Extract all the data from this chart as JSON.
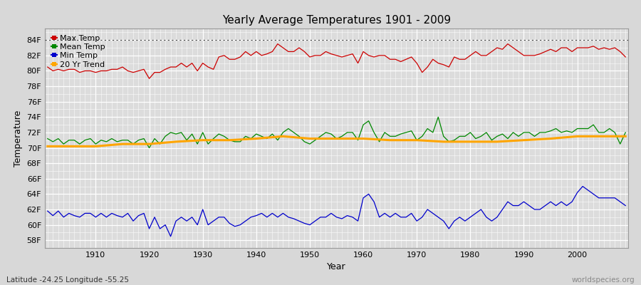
{
  "title": "Yearly Average Temperatures 1901 - 2009",
  "xlabel": "Year",
  "ylabel": "Temperature",
  "bg_color": "#d8d8d8",
  "plot_bg_color": "#dcdcdc",
  "grid_color": "#ffffff",
  "years": [
    1901,
    1902,
    1903,
    1904,
    1905,
    1906,
    1907,
    1908,
    1909,
    1910,
    1911,
    1912,
    1913,
    1914,
    1915,
    1916,
    1917,
    1918,
    1919,
    1920,
    1921,
    1922,
    1923,
    1924,
    1925,
    1926,
    1927,
    1928,
    1929,
    1930,
    1931,
    1932,
    1933,
    1934,
    1935,
    1936,
    1937,
    1938,
    1939,
    1940,
    1941,
    1942,
    1943,
    1944,
    1945,
    1946,
    1947,
    1948,
    1949,
    1950,
    1951,
    1952,
    1953,
    1954,
    1955,
    1956,
    1957,
    1958,
    1959,
    1960,
    1961,
    1962,
    1963,
    1964,
    1965,
    1966,
    1967,
    1968,
    1969,
    1970,
    1971,
    1972,
    1973,
    1974,
    1975,
    1976,
    1977,
    1978,
    1979,
    1980,
    1981,
    1982,
    1983,
    1984,
    1985,
    1986,
    1987,
    1988,
    1989,
    1990,
    1991,
    1992,
    1993,
    1994,
    1995,
    1996,
    1997,
    1998,
    1999,
    2000,
    2001,
    2002,
    2003,
    2004,
    2005,
    2006,
    2007,
    2008,
    2009
  ],
  "max_temp": [
    80.5,
    80.0,
    80.2,
    80.0,
    80.2,
    80.2,
    79.8,
    80.0,
    80.0,
    79.8,
    80.0,
    80.0,
    80.2,
    80.2,
    80.5,
    80.0,
    79.8,
    80.0,
    80.2,
    79.0,
    79.8,
    79.8,
    80.2,
    80.5,
    80.5,
    81.0,
    80.5,
    81.0,
    80.0,
    81.0,
    80.5,
    80.2,
    81.8,
    82.0,
    81.5,
    81.5,
    81.8,
    82.5,
    82.0,
    82.5,
    82.0,
    82.2,
    82.5,
    83.5,
    83.0,
    82.5,
    82.5,
    83.0,
    82.5,
    81.8,
    82.0,
    82.0,
    82.5,
    82.2,
    82.0,
    81.8,
    82.0,
    82.2,
    81.0,
    82.5,
    82.0,
    81.8,
    82.0,
    82.0,
    81.5,
    81.5,
    81.2,
    81.5,
    81.8,
    81.0,
    79.8,
    80.5,
    81.5,
    81.0,
    80.8,
    80.5,
    81.8,
    81.5,
    81.5,
    82.0,
    82.5,
    82.0,
    82.0,
    82.5,
    83.0,
    82.8,
    83.5,
    83.0,
    82.5,
    82.0,
    82.0,
    82.0,
    82.2,
    82.5,
    82.8,
    82.5,
    83.0,
    83.0,
    82.5,
    83.0,
    83.0,
    83.0,
    83.2,
    82.8,
    83.0,
    82.8,
    83.0,
    82.5,
    81.8
  ],
  "mean_temp": [
    71.2,
    70.8,
    71.2,
    70.5,
    71.0,
    71.0,
    70.5,
    71.0,
    71.2,
    70.5,
    71.0,
    70.8,
    71.2,
    70.8,
    71.0,
    71.0,
    70.5,
    71.0,
    71.2,
    70.0,
    71.2,
    70.5,
    71.5,
    72.0,
    71.8,
    72.0,
    71.0,
    71.8,
    70.5,
    72.0,
    70.5,
    71.2,
    71.8,
    71.5,
    71.0,
    70.8,
    70.8,
    71.5,
    71.2,
    71.8,
    71.5,
    71.2,
    71.8,
    71.0,
    72.0,
    72.5,
    72.0,
    71.5,
    70.8,
    70.5,
    71.0,
    71.5,
    72.0,
    71.8,
    71.2,
    71.5,
    72.0,
    72.0,
    71.0,
    73.0,
    73.5,
    72.0,
    70.8,
    72.0,
    71.5,
    71.5,
    71.8,
    72.0,
    72.2,
    71.0,
    71.5,
    72.5,
    72.0,
    74.0,
    71.5,
    70.8,
    71.0,
    71.5,
    71.5,
    72.0,
    71.2,
    71.5,
    72.0,
    71.0,
    71.5,
    71.8,
    71.2,
    72.0,
    71.5,
    72.0,
    72.0,
    71.5,
    72.0,
    72.0,
    72.2,
    72.5,
    72.0,
    72.2,
    72.0,
    72.5,
    72.5,
    72.5,
    73.0,
    72.0,
    72.0,
    72.5,
    72.0,
    70.5,
    72.0
  ],
  "min_temp": [
    61.8,
    61.2,
    61.8,
    61.0,
    61.5,
    61.2,
    61.0,
    61.5,
    61.5,
    61.0,
    61.5,
    61.0,
    61.5,
    61.2,
    61.0,
    61.5,
    60.5,
    61.2,
    61.5,
    59.5,
    61.0,
    59.5,
    60.0,
    58.5,
    60.5,
    61.0,
    60.5,
    61.0,
    60.0,
    62.0,
    60.0,
    60.5,
    61.0,
    61.0,
    60.2,
    59.8,
    60.0,
    60.5,
    61.0,
    61.2,
    61.5,
    61.0,
    61.5,
    61.0,
    61.5,
    61.0,
    60.8,
    60.5,
    60.2,
    60.0,
    60.5,
    61.0,
    61.0,
    61.5,
    61.0,
    60.8,
    61.2,
    61.0,
    60.5,
    63.5,
    64.0,
    63.0,
    61.0,
    61.5,
    61.0,
    61.5,
    61.0,
    61.0,
    61.5,
    60.5,
    61.0,
    62.0,
    61.5,
    61.0,
    60.5,
    59.5,
    60.5,
    61.0,
    60.5,
    61.0,
    61.5,
    62.0,
    61.0,
    60.5,
    61.0,
    62.0,
    63.0,
    62.5,
    62.5,
    63.0,
    62.5,
    62.0,
    62.0,
    62.5,
    63.0,
    62.5,
    63.0,
    62.5,
    63.0,
    64.2,
    65.0,
    64.5,
    64.0,
    63.5,
    63.5,
    63.5,
    63.5,
    63.0,
    62.5
  ],
  "trend_years": [
    1901,
    1905,
    1910,
    1915,
    1920,
    1925,
    1930,
    1935,
    1940,
    1945,
    1950,
    1955,
    1960,
    1965,
    1970,
    1975,
    1980,
    1985,
    1990,
    1995,
    2000,
    2005,
    2009
  ],
  "trend_vals": [
    70.2,
    70.2,
    70.2,
    70.5,
    70.5,
    70.8,
    71.0,
    71.0,
    71.2,
    71.5,
    71.2,
    71.2,
    71.2,
    71.0,
    71.0,
    70.8,
    70.8,
    70.8,
    71.0,
    71.2,
    71.5,
    71.5,
    71.5
  ],
  "ylim": [
    57,
    85
  ],
  "yticks": [
    58,
    60,
    62,
    64,
    66,
    68,
    70,
    72,
    74,
    76,
    78,
    80,
    82,
    84
  ],
  "ytick_labels": [
    "58F",
    "60F",
    "62F",
    "64F",
    "66F",
    "68F",
    "70F",
    "72F",
    "74F",
    "76F",
    "78F",
    "80F",
    "82F",
    "84F"
  ],
  "xticks": [
    1910,
    1920,
    1930,
    1940,
    1950,
    1960,
    1970,
    1980,
    1990,
    2000
  ],
  "max_color": "#cc0000",
  "mean_color": "#008800",
  "min_color": "#0000cc",
  "trend_color": "#ffa500",
  "dashed_line_y": 84,
  "watermark": "worldspecies.org",
  "footer_left": "Latitude -24.25 Longitude -55.25"
}
